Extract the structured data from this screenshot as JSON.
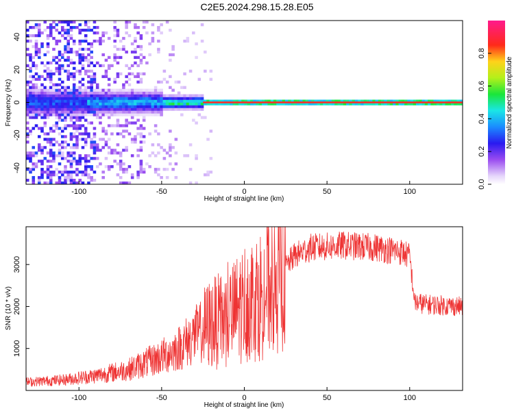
{
  "title": "C2E5.2024.298.15.28.E05",
  "chart_data": [
    {
      "type": "heatmap",
      "xlabel": "Height of straight line (km)",
      "ylabel": "Frequency (Hz)",
      "xlim": [
        -132,
        132
      ],
      "ylim": [
        -50,
        50
      ],
      "xticks": [
        -100,
        -50,
        0,
        50,
        100
      ],
      "yticks": [
        -40,
        -20,
        0,
        20,
        40
      ],
      "colorbar": {
        "label": "Normalized spectral amplitude",
        "range": [
          0,
          1
        ],
        "ticks": [
          0.0,
          0.2,
          0.4,
          0.6,
          0.8
        ],
        "colormap": "rainbow (white-violet-blue-cyan-green-yellow-red-magenta)"
      },
      "description_of_energy": [
        {
          "x_range": [
            -132,
            -95
          ],
          "freq_center": 0,
          "freq_halfwidth": 6,
          "peak_amplitude": 0.35
        },
        {
          "x_range": [
            -95,
            -50
          ],
          "freq_center": 0,
          "freq_halfwidth": 5,
          "peak_amplitude": 0.45
        },
        {
          "x_range": [
            -50,
            -25
          ],
          "freq_center": 0,
          "freq_halfwidth": 3,
          "peak_amplitude": 0.6
        },
        {
          "x_range": [
            -25,
            132
          ],
          "freq_center": 0,
          "freq_halfwidth": 1.2,
          "peak_amplitude": 0.9
        }
      ]
    },
    {
      "type": "line",
      "xlabel": "Height of straight line (km)",
      "ylabel": "SNR (10 * v/v)",
      "xlim": [
        -132,
        132
      ],
      "ylim": [
        0,
        3900
      ],
      "xticks": [
        -100,
        -50,
        0,
        50,
        100
      ],
      "yticks": [
        1000,
        2000,
        3000
      ],
      "color": "#ee3333",
      "envelope": {
        "x": [
          -132,
          -110,
          -90,
          -70,
          -50,
          -40,
          -30,
          -20,
          -10,
          0,
          10,
          20,
          30,
          40,
          60,
          80,
          95,
          100,
          103,
          110,
          132
        ],
        "mean": [
          200,
          250,
          350,
          500,
          800,
          1000,
          1300,
          1600,
          1700,
          2100,
          2300,
          2700,
          3200,
          3400,
          3450,
          3400,
          3300,
          3200,
          2100,
          2050,
          2000
        ]
      }
    }
  ]
}
